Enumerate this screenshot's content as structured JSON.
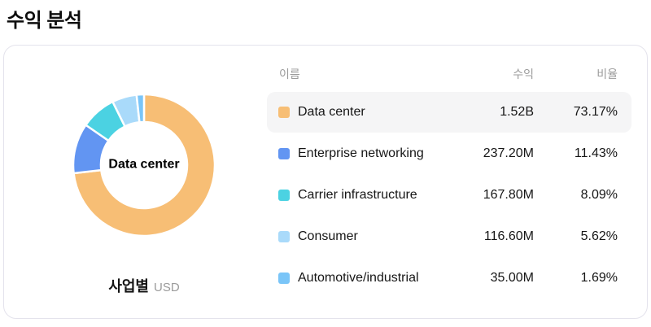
{
  "page": {
    "title": "수익 분석"
  },
  "card": {
    "center_label": "Data center",
    "footer": {
      "label": "사업별",
      "unit": "USD"
    }
  },
  "table": {
    "headers": {
      "name": "이름",
      "revenue": "수익",
      "ratio": "비율"
    },
    "rows": [
      {
        "name": "Data center",
        "revenue": "1.52B",
        "ratio": "73.17%",
        "color": "#f7be75",
        "highlighted": true
      },
      {
        "name": "Enterprise networking",
        "revenue": "237.20M",
        "ratio": "11.43%",
        "color": "#6295f2",
        "highlighted": false
      },
      {
        "name": "Carrier infrastructure",
        "revenue": "167.80M",
        "ratio": "8.09%",
        "color": "#4bd2e2",
        "highlighted": false
      },
      {
        "name": "Consumer",
        "revenue": "116.60M",
        "ratio": "5.62%",
        "color": "#a9dafa",
        "highlighted": false
      },
      {
        "name": "Automotive/industrial",
        "revenue": "35.00M",
        "ratio": "1.69%",
        "color": "#7ac5f8",
        "highlighted": false
      }
    ]
  },
  "chart_data": {
    "type": "pie",
    "subtype": "donut",
    "title": "수익 분석",
    "series_label": "사업별",
    "unit": "USD",
    "center_label": "Data center",
    "categories": [
      "Data center",
      "Enterprise networking",
      "Carrier infrastructure",
      "Consumer",
      "Automotive/industrial"
    ],
    "values_percent": [
      73.17,
      11.43,
      8.09,
      5.62,
      1.69
    ],
    "values_revenue": [
      "1.52B",
      "237.20M",
      "167.80M",
      "116.60M",
      "35.00M"
    ],
    "colors": [
      "#f7be75",
      "#6295f2",
      "#4bd2e2",
      "#a9dafa",
      "#7ac5f8"
    ],
    "start_angle_deg": 0,
    "clockwise": true,
    "slice_gap_color": "#ffffff",
    "legend_position": "right"
  }
}
